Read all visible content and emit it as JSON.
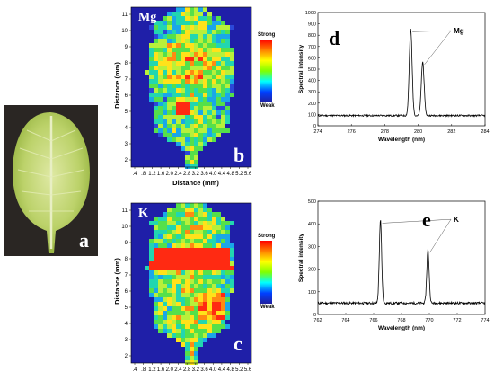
{
  "panels": {
    "a": {
      "letter": "a"
    },
    "b": {
      "letter": "b",
      "element": "Mg",
      "ylabel": "Distance (mm)",
      "xlabel": "Distance (mm)",
      "xticks": [
        ".4",
        ".8",
        "1.2",
        "1.6",
        "2.0",
        "2.4",
        "2.8",
        "3.2",
        "3.6",
        "4.0",
        "4.4",
        "4.8",
        "5.2",
        "5.6"
      ],
      "yticks": [
        "2",
        "3",
        "4",
        "5",
        "6",
        "7",
        "8",
        "9",
        "10",
        "11"
      ],
      "colorbar_top": "Strong",
      "colorbar_bottom": "Weak"
    },
    "c": {
      "letter": "c",
      "element": "K",
      "ylabel": "Distance (mm)",
      "xlabel": "Distance (mm)",
      "xticks": [
        ".4",
        ".8",
        "1.2",
        "1.6",
        "2.0",
        "2.4",
        "2.8",
        "3.2",
        "3.6",
        "4.0",
        "4.4",
        "4.8",
        "5.2",
        "5.6"
      ],
      "yticks": [
        "2",
        "3",
        "4",
        "5",
        "6",
        "7",
        "8",
        "9",
        "10",
        "11"
      ],
      "colorbar_top": "Strong",
      "colorbar_bottom": "Weak"
    },
    "d": {
      "letter": "d",
      "annotation": "Mg"
    },
    "e": {
      "letter": "e",
      "annotation": "K"
    }
  },
  "chart_data": [
    {
      "panel": "d",
      "type": "line",
      "xlabel": "Wavelength (nm)",
      "ylabel": "Spectral intensity",
      "xlim": [
        274,
        284
      ],
      "ylim": [
        0,
        1000
      ],
      "xticks": [
        274,
        276,
        278,
        280,
        282,
        284
      ],
      "yticks": [
        0,
        100,
        200,
        300,
        400,
        500,
        600,
        700,
        800,
        900,
        1000
      ],
      "baseline": 90,
      "peaks": [
        {
          "x": 279.55,
          "y": 855,
          "width": 0.12
        },
        {
          "x": 280.27,
          "y": 565,
          "width": 0.12
        }
      ],
      "annotation": {
        "text": "Mg",
        "targets": [
          279.55,
          280.27
        ]
      }
    },
    {
      "panel": "e",
      "type": "line",
      "xlabel": "Wavelength (nm)",
      "ylabel": "Spectral intensity",
      "xlim": [
        762,
        774
      ],
      "ylim": [
        0,
        500
      ],
      "xticks": [
        762,
        764,
        766,
        768,
        770,
        772,
        774
      ],
      "yticks": [
        0,
        100,
        200,
        300,
        400,
        500
      ],
      "baseline": 50,
      "peaks": [
        {
          "x": 766.49,
          "y": 415,
          "width": 0.12
        },
        {
          "x": 769.9,
          "y": 285,
          "width": 0.12
        }
      ],
      "annotation": {
        "text": "K",
        "targets": [
          766.49,
          769.9
        ]
      }
    }
  ]
}
